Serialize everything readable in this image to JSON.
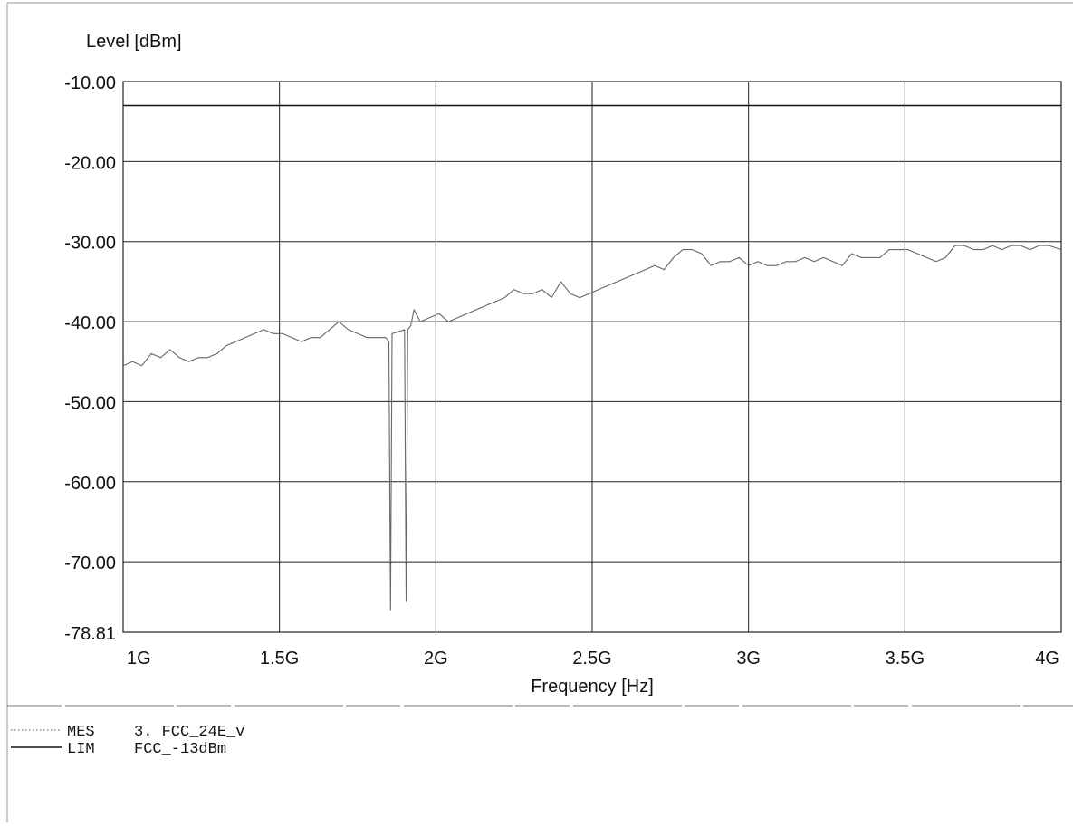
{
  "chart_data": {
    "type": "line",
    "ylabel": "Level [dBm]",
    "xlabel": "Frequency [Hz]",
    "ylim": [
      -78.81,
      -10.0
    ],
    "xlim": [
      1000000000,
      4000000000
    ],
    "x_scale": "linear",
    "grid": true,
    "y_ticks": [
      {
        "value": -10.0,
        "label": "-10.00"
      },
      {
        "value": -20.0,
        "label": "-20.00"
      },
      {
        "value": -30.0,
        "label": "-30.00"
      },
      {
        "value": -40.0,
        "label": "-40.00"
      },
      {
        "value": -50.0,
        "label": "-50.00"
      },
      {
        "value": -60.0,
        "label": "-60.00"
      },
      {
        "value": -70.0,
        "label": "-70.00"
      },
      {
        "value": -78.81,
        "label": "-78.81"
      }
    ],
    "x_ticks": [
      {
        "value": 1000000000,
        "label": "1G"
      },
      {
        "value": 1500000000,
        "label": "1.5G"
      },
      {
        "value": 2000000000,
        "label": "2G"
      },
      {
        "value": 2500000000,
        "label": "2.5G"
      },
      {
        "value": 3000000000,
        "label": "3G"
      },
      {
        "value": 3500000000,
        "label": "3.5G"
      },
      {
        "value": 4000000000,
        "label": "4G"
      }
    ],
    "legend": [
      {
        "key": "MES",
        "text": "3. FCC_24E_v",
        "style": "dotted",
        "color": "#777777"
      },
      {
        "key": "LIM",
        "text": "FCC_-13dBm",
        "style": "solid",
        "color": "#111111"
      }
    ],
    "series": [
      {
        "legend_key": "MES",
        "color": "#666666",
        "x": [
          1000000000,
          1030000000,
          1060000000,
          1090000000,
          1120000000,
          1150000000,
          1180000000,
          1210000000,
          1240000000,
          1270000000,
          1300000000,
          1330000000,
          1360000000,
          1390000000,
          1420000000,
          1450000000,
          1480000000,
          1510000000,
          1540000000,
          1570000000,
          1600000000,
          1630000000,
          1660000000,
          1690000000,
          1720000000,
          1750000000,
          1780000000,
          1810000000,
          1840000000,
          1850000000,
          1855000000,
          1860000000,
          1900000000,
          1905000000,
          1910000000,
          1920000000,
          1930000000,
          1950000000,
          1980000000,
          2010000000,
          2040000000,
          2070000000,
          2100000000,
          2130000000,
          2160000000,
          2190000000,
          2220000000,
          2250000000,
          2280000000,
          2310000000,
          2340000000,
          2370000000,
          2400000000,
          2430000000,
          2460000000,
          2490000000,
          2520000000,
          2550000000,
          2580000000,
          2610000000,
          2640000000,
          2670000000,
          2700000000,
          2730000000,
          2760000000,
          2790000000,
          2820000000,
          2850000000,
          2880000000,
          2910000000,
          2940000000,
          2970000000,
          3000000000,
          3030000000,
          3060000000,
          3090000000,
          3120000000,
          3150000000,
          3180000000,
          3210000000,
          3240000000,
          3270000000,
          3300000000,
          3330000000,
          3360000000,
          3390000000,
          3420000000,
          3450000000,
          3480000000,
          3510000000,
          3540000000,
          3570000000,
          3600000000,
          3630000000,
          3660000000,
          3690000000,
          3720000000,
          3750000000,
          3780000000,
          3810000000,
          3840000000,
          3870000000,
          3900000000,
          3930000000,
          3960000000,
          4000000000
        ],
        "y": [
          -45.5,
          -45.0,
          -45.5,
          -44.0,
          -44.5,
          -43.5,
          -44.5,
          -45.0,
          -44.5,
          -44.5,
          -44.0,
          -43.0,
          -42.5,
          -42.0,
          -41.5,
          -41.0,
          -41.5,
          -41.5,
          -42.0,
          -42.5,
          -42.0,
          -42.0,
          -41.0,
          -40.0,
          -41.0,
          -41.5,
          -42.0,
          -42.0,
          -42.0,
          -42.5,
          -76.0,
          -41.5,
          -41.0,
          -75.0,
          -41.0,
          -40.5,
          -38.5,
          -40.0,
          -39.5,
          -39.0,
          -40.0,
          -39.5,
          -39.0,
          -38.5,
          -38.0,
          -37.5,
          -37.0,
          -36.0,
          -36.5,
          -36.5,
          -36.0,
          -37.0,
          -35.0,
          -36.5,
          -37.0,
          -36.5,
          -36.0,
          -35.5,
          -35.0,
          -34.5,
          -34.0,
          -33.5,
          -33.0,
          -33.5,
          -32.0,
          -31.0,
          -31.0,
          -31.5,
          -33.0,
          -32.5,
          -32.5,
          -32.0,
          -33.0,
          -32.5,
          -33.0,
          -33.0,
          -32.5,
          -32.5,
          -32.0,
          -32.5,
          -32.0,
          -32.5,
          -33.0,
          -31.5,
          -32.0,
          -32.0,
          -32.0,
          -31.0,
          -31.0,
          -31.0,
          -31.5,
          -32.0,
          -32.5,
          -32.0,
          -30.5,
          -30.5,
          -31.0,
          -31.0,
          -30.5,
          -31.0,
          -30.5,
          -30.5,
          -31.0,
          -30.5,
          -30.5,
          -31.0
        ]
      },
      {
        "legend_key": "LIM",
        "color": "#111111",
        "x": [
          1000000000,
          4000000000
        ],
        "y": [
          -13.0,
          -13.0
        ]
      }
    ]
  }
}
